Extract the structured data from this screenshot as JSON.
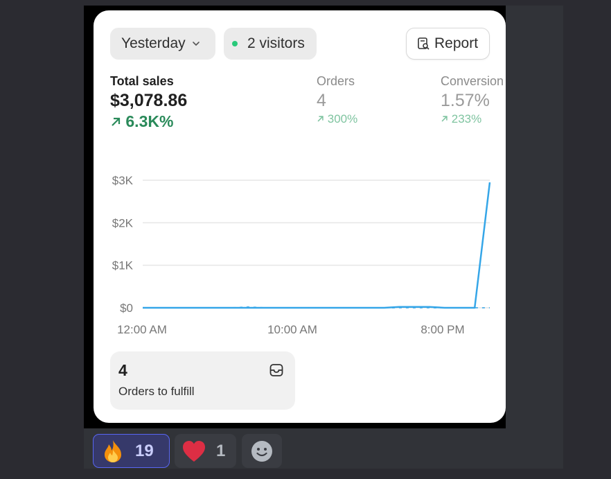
{
  "filters": {
    "date_label": "Yesterday",
    "visitors_label": "2 visitors",
    "report_label": "Report"
  },
  "metrics": {
    "sales": {
      "label": "Total sales",
      "value": "$3,078.86",
      "change": "6.3K%"
    },
    "orders": {
      "label": "Orders",
      "value": "4",
      "change": "300%"
    },
    "conversion": {
      "label": "Conversion",
      "value": "1.57%",
      "change": "233%"
    }
  },
  "chart_data": {
    "type": "line",
    "x_ticks": [
      "12:00 AM",
      "10:00 AM",
      "8:00 PM"
    ],
    "y_ticks": [
      "$0",
      "$1K",
      "$2K",
      "$3K"
    ],
    "ylim": [
      0,
      3000
    ],
    "x_hours": [
      0,
      1,
      2,
      3,
      4,
      5,
      6,
      7,
      8,
      9,
      10,
      11,
      12,
      13,
      14,
      15,
      16,
      17,
      18,
      19,
      20,
      21,
      22,
      23
    ],
    "series": [
      {
        "values": [
          0,
          0,
          0,
          0,
          0,
          0,
          0,
          0,
          0,
          0,
          0,
          0,
          0,
          0,
          0,
          0,
          0,
          20,
          20,
          20,
          0,
          0,
          0,
          2950
        ]
      },
      {
        "values": [
          0,
          0,
          0,
          0,
          0,
          0,
          0,
          20,
          0,
          0,
          0,
          0,
          0,
          0,
          0,
          0,
          0,
          0,
          0,
          0,
          0,
          0,
          0,
          0
        ]
      }
    ],
    "colors": {
      "line": "#35a6e8",
      "grid": "#e6e6e6"
    }
  },
  "fulfill": {
    "count": "4",
    "label": "Orders to fulfill"
  },
  "reactions": [
    {
      "icon": "fire-icon",
      "count": "19"
    },
    {
      "icon": "heart-icon",
      "count": "1"
    }
  ],
  "colors": {
    "positive": "#2a8a5a",
    "accent": "#5865f2"
  }
}
